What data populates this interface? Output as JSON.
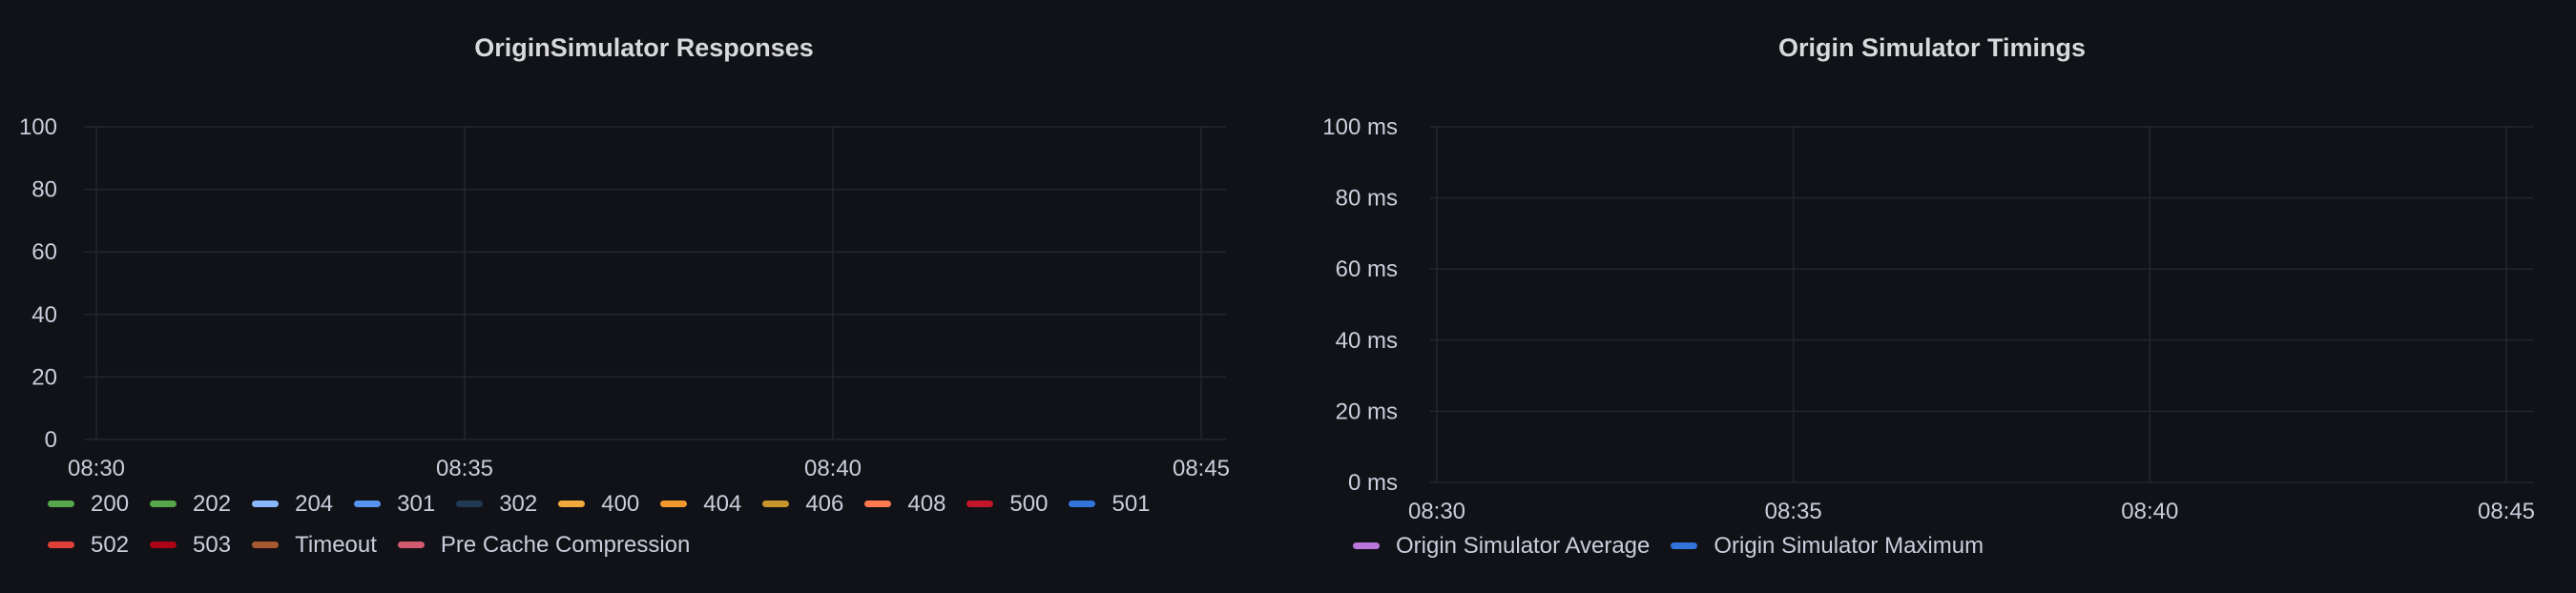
{
  "panels": {
    "responses": {
      "title": "OriginSimulator Responses"
    },
    "timings": {
      "title": "Origin Simulator Timings"
    }
  },
  "chart_data": [
    {
      "type": "line",
      "title": "OriginSimulator Responses",
      "x_ticks": [
        "08:30",
        "08:35",
        "08:40",
        "08:45"
      ],
      "y_ticks": [
        "0",
        "20",
        "40",
        "60",
        "80",
        "100"
      ],
      "ylim": [
        0,
        100
      ],
      "grid": true,
      "legend_position": "bottom",
      "series": [
        {
          "name": "200",
          "color": "#56a64b",
          "values": []
        },
        {
          "name": "202",
          "color": "#56a64b",
          "values": []
        },
        {
          "name": "204",
          "color": "#8ab8ff",
          "values": []
        },
        {
          "name": "301",
          "color": "#5794f2",
          "values": []
        },
        {
          "name": "302",
          "color": "#1f3a52",
          "values": []
        },
        {
          "name": "400",
          "color": "#f2a93b",
          "values": []
        },
        {
          "name": "404",
          "color": "#f2992e",
          "values": []
        },
        {
          "name": "406",
          "color": "#c8952b",
          "values": []
        },
        {
          "name": "408",
          "color": "#ff7a50",
          "values": []
        },
        {
          "name": "500",
          "color": "#c4162a",
          "values": []
        },
        {
          "name": "501",
          "color": "#3274d9",
          "values": []
        },
        {
          "name": "502",
          "color": "#e0403a",
          "values": []
        },
        {
          "name": "503",
          "color": "#ad0317",
          "values": []
        },
        {
          "name": "Timeout",
          "color": "#a8582f",
          "values": []
        },
        {
          "name": "Pre Cache Compression",
          "color": "#d05b6e",
          "values": []
        }
      ]
    },
    {
      "type": "line",
      "title": "Origin Simulator Timings",
      "x_ticks": [
        "08:30",
        "08:35",
        "08:40",
        "08:45"
      ],
      "y_ticks": [
        "0 ms",
        "20 ms",
        "40 ms",
        "60 ms",
        "80 ms",
        "100 ms"
      ],
      "ylim": [
        0,
        100
      ],
      "y_unit": "ms",
      "grid": true,
      "legend_position": "bottom",
      "series": [
        {
          "name": "Origin Simulator Average",
          "color": "#b877d9",
          "values": []
        },
        {
          "name": "Origin Simulator Maximum",
          "color": "#3274d9",
          "values": []
        }
      ]
    }
  ]
}
